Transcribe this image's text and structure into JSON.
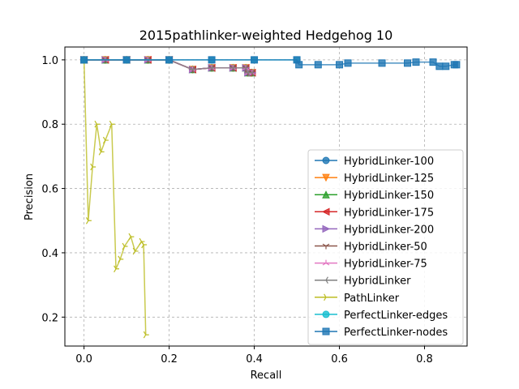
{
  "chart_data": {
    "type": "line",
    "title": "2015pathlinker-weighted Hedgehog 10",
    "xlabel": "Recall",
    "ylabel": "Precision",
    "xlim": [
      -0.045,
      0.9
    ],
    "ylim": [
      0.11,
      1.04
    ],
    "xticks": [
      0.0,
      0.2,
      0.4,
      0.6,
      0.8
    ],
    "xtick_labels": [
      "0.0",
      "0.2",
      "0.4",
      "0.6",
      "0.8"
    ],
    "yticks": [
      0.2,
      0.4,
      0.6,
      0.8,
      1.0
    ],
    "ytick_labels": [
      "0.2",
      "0.4",
      "0.6",
      "0.8",
      "1.0"
    ],
    "grid": true,
    "legend_position": "lower-right",
    "series": [
      {
        "name": "HybridLinker-100",
        "color": "#1f77b4",
        "marker": "circle",
        "x": [
          0.0,
          0.05,
          0.1,
          0.15,
          0.2,
          0.255,
          0.3,
          0.35,
          0.38,
          0.385,
          0.395
        ],
        "y": [
          1.0,
          1.0,
          1.0,
          1.0,
          1.0,
          0.97,
          0.975,
          0.975,
          0.975,
          0.96,
          0.96
        ]
      },
      {
        "name": "HybridLinker-125",
        "color": "#ff7f0e",
        "marker": "triangle-down",
        "x": [
          0.0,
          0.05,
          0.1,
          0.15,
          0.2,
          0.255,
          0.3,
          0.35,
          0.38,
          0.385,
          0.395
        ],
        "y": [
          1.0,
          1.0,
          1.0,
          1.0,
          1.0,
          0.97,
          0.975,
          0.975,
          0.975,
          0.96,
          0.96
        ]
      },
      {
        "name": "HybridLinker-150",
        "color": "#2ca02c",
        "marker": "triangle-up",
        "x": [
          0.0,
          0.05,
          0.1,
          0.15,
          0.2,
          0.255,
          0.3,
          0.35,
          0.38,
          0.385,
          0.395
        ],
        "y": [
          1.0,
          1.0,
          1.0,
          1.0,
          1.0,
          0.97,
          0.975,
          0.975,
          0.975,
          0.96,
          0.96
        ]
      },
      {
        "name": "HybridLinker-175",
        "color": "#d62728",
        "marker": "triangle-left",
        "x": [
          0.0,
          0.05,
          0.1,
          0.15,
          0.2,
          0.255,
          0.3,
          0.35,
          0.38,
          0.385,
          0.395
        ],
        "y": [
          1.0,
          1.0,
          1.0,
          1.0,
          1.0,
          0.97,
          0.975,
          0.975,
          0.975,
          0.96,
          0.96
        ]
      },
      {
        "name": "HybridLinker-200",
        "color": "#9467bd",
        "marker": "triangle-right",
        "x": [
          0.0,
          0.05,
          0.1,
          0.15,
          0.2,
          0.255,
          0.3,
          0.35,
          0.38,
          0.385,
          0.395
        ],
        "y": [
          1.0,
          1.0,
          1.0,
          1.0,
          1.0,
          0.97,
          0.975,
          0.975,
          0.975,
          0.96,
          0.96
        ]
      },
      {
        "name": "HybridLinker-50",
        "color": "#8c564b",
        "marker": "tri-down",
        "x": [
          0.0,
          0.05,
          0.1,
          0.15,
          0.2,
          0.255,
          0.3,
          0.35,
          0.38,
          0.385,
          0.395
        ],
        "y": [
          1.0,
          1.0,
          1.0,
          1.0,
          1.0,
          0.97,
          0.975,
          0.975,
          0.975,
          0.96,
          0.96
        ]
      },
      {
        "name": "HybridLinker-75",
        "color": "#e377c2",
        "marker": "tri-up",
        "x": [
          0.0,
          0.05,
          0.1,
          0.15,
          0.2,
          0.255,
          0.3,
          0.35,
          0.38,
          0.385,
          0.395
        ],
        "y": [
          1.0,
          1.0,
          1.0,
          1.0,
          1.0,
          0.97,
          0.975,
          0.975,
          0.975,
          0.96,
          0.96
        ]
      },
      {
        "name": "HybridLinker",
        "color": "#7f7f7f",
        "marker": "tri-left",
        "x": [
          0.0,
          0.05,
          0.1,
          0.15,
          0.2,
          0.255,
          0.3,
          0.35,
          0.38,
          0.385,
          0.395
        ],
        "y": [
          1.0,
          1.0,
          1.0,
          1.0,
          1.0,
          0.97,
          0.975,
          0.975,
          0.975,
          0.96,
          0.96
        ]
      },
      {
        "name": "PathLinker",
        "color": "#bcbd22",
        "marker": "tri-right",
        "x": [
          0.0,
          0.01,
          0.02,
          0.03,
          0.04,
          0.05,
          0.065,
          0.075,
          0.085,
          0.095,
          0.11,
          0.12,
          0.135,
          0.14,
          0.145
        ],
        "y": [
          1.0,
          0.5,
          0.667,
          0.8,
          0.714,
          0.75,
          0.8,
          0.35,
          0.38,
          0.42,
          0.45,
          0.405,
          0.435,
          0.425,
          0.145
        ]
      },
      {
        "name": "PerfectLinker-edges",
        "color": "#17becf",
        "marker": "circle",
        "x": [
          0.0,
          0.1,
          0.2,
          0.3,
          0.4,
          0.5
        ],
        "y": [
          1.0,
          1.0,
          1.0,
          1.0,
          1.0,
          1.0
        ]
      },
      {
        "name": "PerfectLinker-nodes",
        "color": "#1f77b4",
        "marker": "square",
        "x": [
          0.0,
          0.1,
          0.2,
          0.3,
          0.4,
          0.5,
          0.505,
          0.55,
          0.6,
          0.62,
          0.7,
          0.76,
          0.78,
          0.82,
          0.835,
          0.85,
          0.87,
          0.875
        ],
        "y": [
          1.0,
          1.0,
          1.0,
          1.0,
          1.0,
          1.0,
          0.985,
          0.985,
          0.985,
          0.99,
          0.99,
          0.99,
          0.993,
          0.993,
          0.98,
          0.98,
          0.985,
          0.985
        ]
      }
    ]
  }
}
